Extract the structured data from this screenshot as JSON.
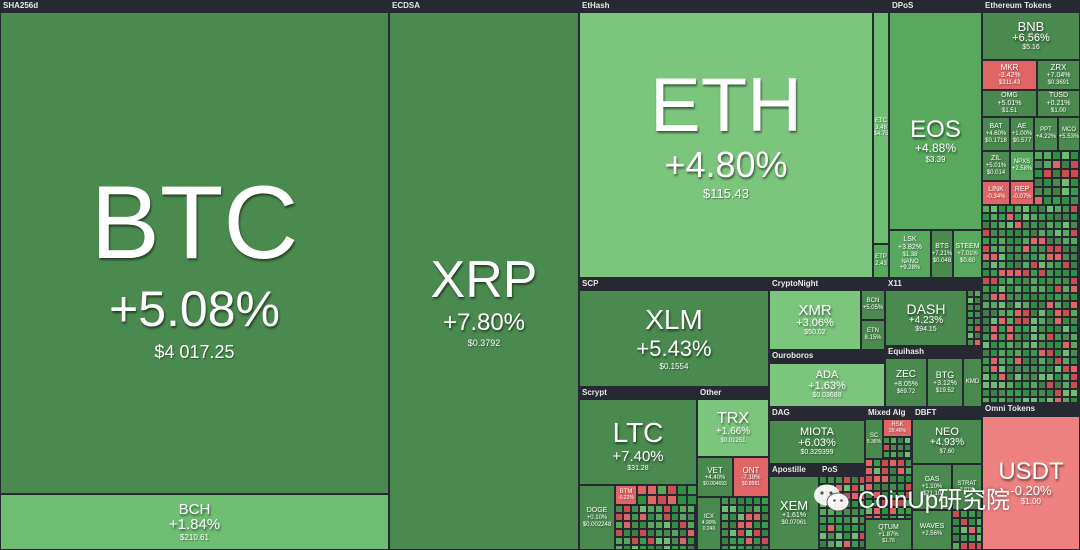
{
  "sections": {
    "sha256": "SHA256d",
    "ecdsa": "ECDSA",
    "ethash": "EtHash",
    "dpos": "DPoS",
    "eth_tokens": "Ethereum Tokens",
    "scp": "SCP",
    "cryptonight": "CryptoNight",
    "x11": "X11",
    "ouroboros": "Ouroboros",
    "equihash": "Equihash",
    "scrypt": "Scrypt",
    "other": "Other",
    "dag": "DAG",
    "mixed": "Mixed Alg",
    "dbft": "DBFT",
    "apostille": "Apostille",
    "pos": "PoS",
    "omni": "Omni Tokens"
  },
  "tiles": {
    "btc": {
      "sym": "BTC",
      "chg": "+5.08%",
      "price": "$4 017.25"
    },
    "bch": {
      "sym": "BCH",
      "chg": "+1.84%",
      "price": "$210.61"
    },
    "xrp": {
      "sym": "XRP",
      "chg": "+7.80%",
      "price": "$0.3792"
    },
    "eth": {
      "sym": "ETH",
      "chg": "+4.80%",
      "price": "$115.43"
    },
    "etc": {
      "sym": "ETC",
      "chg": "3.48",
      "price": "$4.75"
    },
    "etp": {
      "sym": "ETP",
      "chg": "",
      "price": "2.43"
    },
    "eos": {
      "sym": "EOS",
      "chg": "+4.88%",
      "price": "$3.39"
    },
    "lsk": {
      "sym": "LSK",
      "chg": "+3.82%",
      "price": "$1.38"
    },
    "nano": {
      "sym": "NANO",
      "chg": "+9.28%",
      "price": ""
    },
    "bts": {
      "sym": "BTS",
      "chg": "+7.21%",
      "price": "$0.048"
    },
    "steem": {
      "sym": "STEEM",
      "chg": "+7.01%",
      "price": "$0.60"
    },
    "bnb": {
      "sym": "BNB",
      "chg": "+6.56%",
      "price": "$5.16"
    },
    "mkr": {
      "sym": "MKR",
      "chg": "-3.42%",
      "price": "$311.43"
    },
    "zrx": {
      "sym": "ZRX",
      "chg": "+7.04%",
      "price": "$0.3691"
    },
    "omg": {
      "sym": "OMG",
      "chg": "+5.01%",
      "price": "$1.51"
    },
    "tusd": {
      "sym": "TUSD",
      "chg": "+0.21%",
      "price": "$1.00"
    },
    "bat": {
      "sym": "BAT",
      "chg": "+4.60%",
      "price": "$0.1718"
    },
    "ae": {
      "sym": "AE",
      "chg": "+1.00%",
      "price": "$0.577"
    },
    "ppt": {
      "sym": "PPT",
      "chg": "+4.22%",
      "price": ""
    },
    "mco": {
      "sym": "MCO",
      "chg": "+5.53%",
      "price": ""
    },
    "zil": {
      "sym": "ZIL",
      "chg": "+5.01%",
      "price": "$0.014"
    },
    "npxs": {
      "sym": "NPXS",
      "chg": "+2.58%",
      "price": ""
    },
    "link": {
      "sym": "LINK",
      "chg": "-0.34%",
      "price": ""
    },
    "rep": {
      "sym": "REP",
      "chg": "-0.07%",
      "price": ""
    },
    "xlm": {
      "sym": "XLM",
      "chg": "+5.43%",
      "price": "$0.1554"
    },
    "xmr": {
      "sym": "XMR",
      "chg": "+3.06%",
      "price": "$50.02"
    },
    "bcn": {
      "sym": "BCN",
      "chg": "+5.05%",
      "price": ""
    },
    "etn": {
      "sym": "ETN",
      "chg": "8.15%",
      "price": ""
    },
    "dash": {
      "sym": "DASH",
      "chg": "+4.23%",
      "price": "$94.15"
    },
    "ada": {
      "sym": "ADA",
      "chg": "+1.63%",
      "price": "$0.03688"
    },
    "zec": {
      "sym": "ZEC",
      "chg": "+8.05%",
      "price": "$69.72"
    },
    "btg": {
      "sym": "BTG",
      "chg": "+3.12%",
      "price": "$19.52"
    },
    "kmd": {
      "sym": "KMD",
      "chg": "",
      "price": ""
    },
    "ltc": {
      "sym": "LTC",
      "chg": "+7.40%",
      "price": "$31.28"
    },
    "doge": {
      "sym": "DOGE",
      "chg": "+0.10%",
      "price": "$0.002248"
    },
    "btm": {
      "sym": "BTM",
      "chg": "-0.22%",
      "price": ""
    },
    "trx": {
      "sym": "TRX",
      "chg": "+1.66%",
      "price": "$0.01251"
    },
    "vet": {
      "sym": "VET",
      "chg": "+4.40%",
      "price": "$0.004693"
    },
    "ont": {
      "sym": "ONT",
      "chg": "-7.19%",
      "price": "$0.8561"
    },
    "icx": {
      "sym": "ICX",
      "chg": "4.99%",
      "price": "0.240"
    },
    "miota": {
      "sym": "MIOTA",
      "chg": "+6.03%",
      "price": "$0.329399"
    },
    "xem": {
      "sym": "XEM",
      "chg": "+1.61%",
      "price": "$0.07061"
    },
    "sc": {
      "sym": "SC",
      "chg": "5.36%",
      "price": ""
    },
    "rsk": {
      "sym": "RSK",
      "chg": "29.46%",
      "price": ""
    },
    "qtum": {
      "sym": "QTUM",
      "chg": "+1.87%",
      "price": "$1.76"
    },
    "neo": {
      "sym": "NEO",
      "chg": "+4.93%",
      "price": "$7.60"
    },
    "gas": {
      "sym": "GAS",
      "chg": "+1.10%",
      "price": "$21.10"
    },
    "strat": {
      "sym": "STRAT",
      "chg": "3.81%",
      "price": ""
    },
    "waves": {
      "sym": "WAVES",
      "chg": "+2.56%",
      "price": ""
    },
    "usdt": {
      "sym": "USDT",
      "chg": "-0.20%",
      "price": "$1.00"
    }
  },
  "watermark": {
    "text": "CoinUp研究院"
  },
  "colors": {
    "bg": "#262931",
    "green_dark": "#4a8a4e",
    "green_light": "#7cc57d",
    "red": "#e06666"
  }
}
